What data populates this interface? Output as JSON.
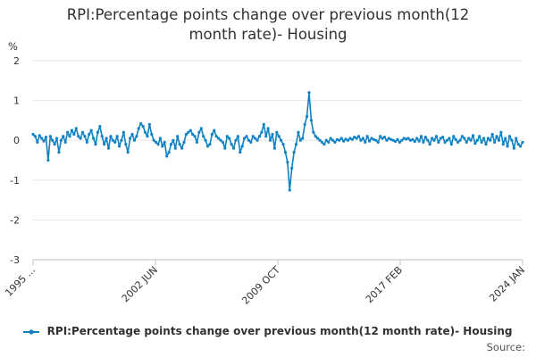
{
  "title_line1": "RPI:Percentage points change over previous month(12",
  "title_line2": "month rate)- Housing",
  "source": "Source:",
  "chart_data": {
    "type": "line",
    "title": "RPI:Percentage points change over previous month(12 month rate)- Housing",
    "ylabel": "%",
    "xlabel": "",
    "ylim": [
      -3,
      2
    ],
    "yticks": [
      2,
      1,
      0,
      -1,
      -2,
      -3
    ],
    "x_tick_labels": [
      "1995 ...",
      "2002 JUN",
      "2009 OCT",
      "2017 FEB",
      "2024 JAN"
    ],
    "grid": true,
    "legend_position": "bottom",
    "colors": {
      "series": "#0f82c4",
      "grid": "#e6e6e6",
      "axis": "#bfbfbf"
    },
    "series": [
      {
        "name": "RPI:Percentage points change over previous month(12 month rate)- Housing",
        "values": [
          0.15,
          0.1,
          -0.05,
          0.12,
          0.05,
          -0.02,
          0.08,
          -0.5,
          0.1,
          0.0,
          -0.1,
          0.05,
          -0.3,
          0.0,
          0.1,
          -0.05,
          0.2,
          0.1,
          0.25,
          0.15,
          0.3,
          0.1,
          0.05,
          0.2,
          0.1,
          -0.05,
          0.15,
          0.25,
          0.05,
          -0.1,
          0.2,
          0.35,
          0.1,
          -0.1,
          0.05,
          -0.2,
          0.1,
          0.0,
          -0.05,
          0.1,
          -0.15,
          0.0,
          0.2,
          -0.1,
          -0.3,
          0.05,
          0.15,
          0.0,
          0.1,
          0.3,
          0.42,
          0.35,
          0.2,
          0.1,
          0.4,
          0.15,
          0.0,
          -0.05,
          -0.1,
          0.05,
          -0.15,
          -0.05,
          -0.4,
          -0.3,
          -0.1,
          0.0,
          -0.2,
          0.1,
          -0.1,
          -0.2,
          -0.05,
          0.15,
          0.2,
          0.25,
          0.15,
          0.1,
          -0.05,
          0.2,
          0.3,
          0.1,
          0.0,
          -0.15,
          -0.1,
          0.15,
          0.25,
          0.1,
          0.05,
          0.0,
          -0.05,
          -0.2,
          0.1,
          0.05,
          -0.1,
          -0.2,
          0.0,
          0.1,
          -0.3,
          -0.15,
          0.05,
          0.1,
          0.0,
          -0.05,
          0.1,
          0.05,
          0.0,
          0.1,
          0.2,
          0.4,
          0.1,
          0.3,
          0.0,
          0.15,
          -0.2,
          0.2,
          0.1,
          0.0,
          -0.1,
          -0.3,
          -0.55,
          -1.25,
          -0.7,
          -0.3,
          -0.1,
          0.2,
          0.0,
          0.05,
          0.4,
          0.6,
          1.2,
          0.5,
          0.2,
          0.1,
          0.05,
          0.0,
          -0.05,
          -0.1,
          0.0,
          -0.05,
          0.05,
          0.0,
          -0.05,
          0.02,
          0.0,
          0.05,
          -0.02,
          0.03,
          0.0,
          0.05,
          0.02,
          0.08,
          0.05,
          0.1,
          0.0,
          0.05,
          -0.05,
          0.1,
          -0.02,
          0.05,
          0.02,
          0.0,
          -0.05,
          0.1,
          0.05,
          0.08,
          0.0,
          0.05,
          0.02,
          0.0,
          -0.03,
          0.02,
          -0.05,
          0.0,
          0.05,
          0.03,
          0.05,
          0.0,
          0.02,
          -0.03,
          0.05,
          -0.02,
          0.1,
          -0.05,
          0.08,
          0.0,
          -0.1,
          0.05,
          0.0,
          0.1,
          -0.05,
          0.05,
          0.08,
          -0.05,
          0.0,
          0.05,
          -0.1,
          0.1,
          0.02,
          -0.05,
          0.0,
          0.1,
          0.05,
          -0.05,
          0.05,
          0.0,
          0.12,
          -0.08,
          0.0,
          0.1,
          -0.05,
          0.05,
          -0.1,
          0.05,
          0.0,
          0.15,
          -0.05,
          0.1,
          0.0,
          0.2,
          -0.1,
          0.05,
          -0.15,
          0.1,
          0.0,
          -0.2,
          0.05,
          -0.1,
          -0.15,
          -0.05
        ]
      }
    ]
  }
}
